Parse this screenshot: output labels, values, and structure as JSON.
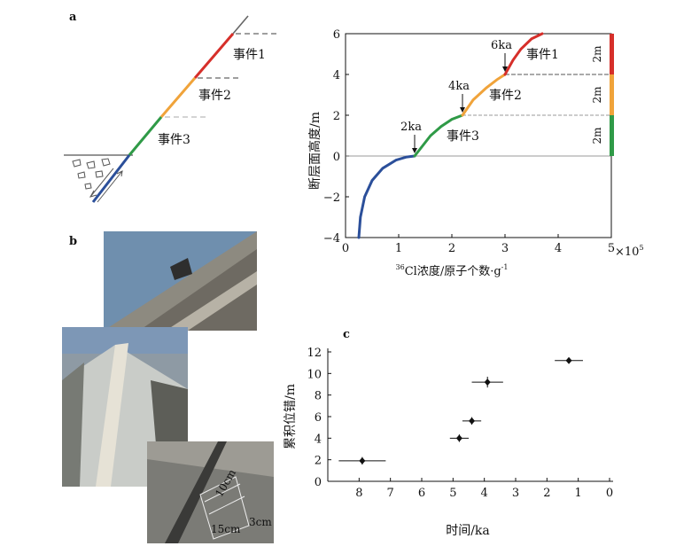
{
  "panel_labels": {
    "a": "a",
    "b": "b",
    "c": "c"
  },
  "sketch": {
    "event_labels": [
      "事件1",
      "事件2",
      "事件3"
    ]
  },
  "photo_annotations": {
    "length": "10cm",
    "width_a": "15cm",
    "width_b": "3cm"
  },
  "colors": {
    "event1": "#d62f2a",
    "event2": "#f0a33a",
    "event3": "#2f9a47",
    "below": "#2b4f9a"
  },
  "chart_data": [
    {
      "type": "line",
      "xlabel_sup": "36",
      "xlabel_main": "Cl浓度/原子个数·g",
      "xlabel_exp": "-1",
      "ylabel": "断层面高度/m",
      "x_multiplier_text": "×10",
      "x_multiplier_exp": "5",
      "xlim": [
        0,
        5
      ],
      "ylim": [
        -4,
        6
      ],
      "x_ticks": [
        "0",
        "1",
        "2",
        "3",
        "4",
        "5"
      ],
      "y_ticks": [
        "−4",
        "−2",
        "0",
        "2",
        "4",
        "6"
      ],
      "series": [
        {
          "color": "#2b4f9a",
          "x": [
            0.25,
            0.28,
            0.36,
            0.5,
            0.7,
            0.95,
            1.15,
            1.3
          ],
          "y": [
            -4,
            -3,
            -2,
            -1.2,
            -0.6,
            -0.2,
            -0.05,
            0
          ]
        },
        {
          "color": "#2f9a47",
          "x": [
            1.3,
            1.45,
            1.6,
            1.8,
            2.0,
            2.2
          ],
          "y": [
            0,
            0.5,
            1.0,
            1.45,
            1.8,
            2.0
          ]
        },
        {
          "color": "#f0a33a",
          "x": [
            2.2,
            2.4,
            2.65,
            2.85,
            3.0
          ],
          "y": [
            2.0,
            2.75,
            3.35,
            3.75,
            4.0
          ]
        },
        {
          "color": "#d62f2a",
          "x": [
            3.0,
            3.15,
            3.3,
            3.5,
            3.7
          ],
          "y": [
            4.0,
            4.7,
            5.25,
            5.75,
            6.0
          ]
        }
      ],
      "annotations": [
        {
          "text": "2ka",
          "x": 1.3,
          "y": 0
        },
        {
          "text": "4ka",
          "x": 2.2,
          "y": 2
        },
        {
          "text": "6ka",
          "x": 3.0,
          "y": 4
        }
      ],
      "event_labels": [
        {
          "text": "事件1",
          "y": 5
        },
        {
          "text": "事件2",
          "y": 3
        },
        {
          "text": "事件3",
          "y": 1
        }
      ],
      "bar_labels": [
        "2m",
        "2m",
        "2m"
      ]
    },
    {
      "type": "scatter",
      "xlabel": "时间/ka",
      "ylabel": "累积位错/m",
      "xlim": [
        9,
        0
      ],
      "ylim": [
        0,
        12
      ],
      "x_ticks": [
        "8",
        "7",
        "6",
        "5",
        "4",
        "3",
        "2",
        "1",
        "0"
      ],
      "y_ticks": [
        "0",
        "2",
        "4",
        "6",
        "8",
        "10",
        "12"
      ],
      "points": [
        {
          "x": 7.9,
          "y": 1.9,
          "xerr": 0.75,
          "yerr": 0.35
        },
        {
          "x": 4.8,
          "y": 4.0,
          "xerr": 0.3,
          "yerr": 0.35
        },
        {
          "x": 4.4,
          "y": 5.6,
          "xerr": 0.3,
          "yerr": 0.35
        },
        {
          "x": 3.9,
          "y": 9.2,
          "xerr": 0.5,
          "yerr": 0.5
        },
        {
          "x": 1.3,
          "y": 11.2,
          "xerr": 0.45,
          "yerr": 0.25
        }
      ]
    }
  ]
}
